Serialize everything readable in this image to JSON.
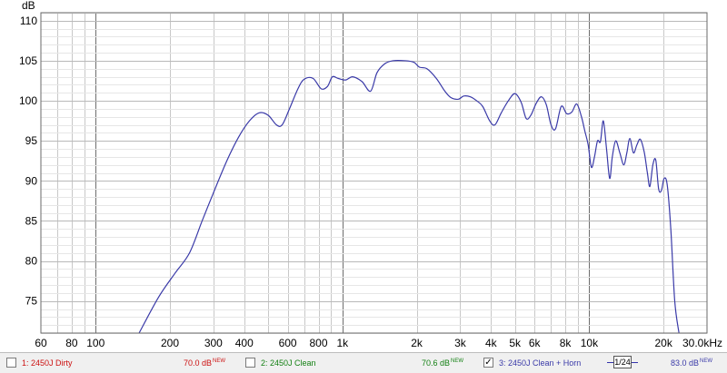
{
  "chart_data": {
    "type": "line",
    "ylabel": "dB",
    "y_ticks": [
      75,
      80,
      85,
      90,
      95,
      100,
      105,
      110
    ],
    "ylim": [
      71,
      111
    ],
    "xlim": [
      60,
      30000
    ],
    "x_scale": "log",
    "x_ticks": [
      {
        "v": 60,
        "label": "60"
      },
      {
        "v": 80,
        "label": "80"
      },
      {
        "v": 100,
        "label": "100"
      },
      {
        "v": 200,
        "label": "200"
      },
      {
        "v": 300,
        "label": "300"
      },
      {
        "v": 400,
        "label": "400"
      },
      {
        "v": 600,
        "label": "600"
      },
      {
        "v": 800,
        "label": "800"
      },
      {
        "v": 1000,
        "label": "1k"
      },
      {
        "v": 2000,
        "label": "2k"
      },
      {
        "v": 3000,
        "label": "3k"
      },
      {
        "v": 4000,
        "label": "4k"
      },
      {
        "v": 5000,
        "label": "5k"
      },
      {
        "v": 6000,
        "label": "6k"
      },
      {
        "v": 8000,
        "label": "8k"
      },
      {
        "v": 10000,
        "label": "10k"
      },
      {
        "v": 20000,
        "label": "20k"
      },
      {
        "v": 30000,
        "label": "30.0kHz"
      }
    ],
    "grid": true,
    "series": [
      {
        "name": "3: 2450J Clean + Horn",
        "color": "#3a3aa8",
        "points": [
          [
            150,
            71.0
          ],
          [
            180,
            75.5
          ],
          [
            210,
            78.5
          ],
          [
            240,
            81.0
          ],
          [
            270,
            85.0
          ],
          [
            300,
            88.5
          ],
          [
            340,
            92.5
          ],
          [
            380,
            95.5
          ],
          [
            420,
            97.5
          ],
          [
            460,
            98.5
          ],
          [
            500,
            98.2
          ],
          [
            540,
            97.0
          ],
          [
            570,
            97.0
          ],
          [
            610,
            99.0
          ],
          [
            660,
            101.5
          ],
          [
            700,
            102.7
          ],
          [
            760,
            102.8
          ],
          [
            820,
            101.5
          ],
          [
            870,
            101.8
          ],
          [
            910,
            103.0
          ],
          [
            960,
            102.8
          ],
          [
            1030,
            102.6
          ],
          [
            1100,
            103.0
          ],
          [
            1200,
            102.4
          ],
          [
            1300,
            101.2
          ],
          [
            1380,
            103.5
          ],
          [
            1480,
            104.6
          ],
          [
            1600,
            105.0
          ],
          [
            1800,
            105.0
          ],
          [
            1950,
            104.8
          ],
          [
            2050,
            104.2
          ],
          [
            2200,
            104.0
          ],
          [
            2400,
            102.8
          ],
          [
            2600,
            101.2
          ],
          [
            2750,
            100.4
          ],
          [
            2950,
            100.2
          ],
          [
            3100,
            100.6
          ],
          [
            3300,
            100.5
          ],
          [
            3500,
            100.0
          ],
          [
            3700,
            99.3
          ],
          [
            3950,
            97.5
          ],
          [
            4150,
            97.0
          ],
          [
            4400,
            98.5
          ],
          [
            4700,
            100.0
          ],
          [
            5000,
            100.9
          ],
          [
            5300,
            99.8
          ],
          [
            5550,
            97.8
          ],
          [
            5800,
            98.2
          ],
          [
            6100,
            99.7
          ],
          [
            6400,
            100.5
          ],
          [
            6700,
            99.5
          ],
          [
            7000,
            97.0
          ],
          [
            7300,
            96.5
          ],
          [
            7700,
            99.3
          ],
          [
            8100,
            98.4
          ],
          [
            8500,
            98.6
          ],
          [
            8900,
            99.6
          ],
          [
            9300,
            98.0
          ],
          [
            9600,
            96.2
          ],
          [
            9900,
            94.5
          ],
          [
            10200,
            91.7
          ],
          [
            10500,
            93.0
          ],
          [
            10800,
            95.0
          ],
          [
            11100,
            94.9
          ],
          [
            11400,
            97.5
          ],
          [
            11750,
            94.0
          ],
          [
            12100,
            90.3
          ],
          [
            12400,
            93.0
          ],
          [
            12800,
            95.0
          ],
          [
            13300,
            93.5
          ],
          [
            13800,
            92.0
          ],
          [
            14200,
            93.5
          ],
          [
            14600,
            95.3
          ],
          [
            15100,
            93.5
          ],
          [
            15600,
            94.5
          ],
          [
            16100,
            95.2
          ],
          [
            16700,
            93.6
          ],
          [
            17200,
            91.0
          ],
          [
            17600,
            89.3
          ],
          [
            18100,
            92.0
          ],
          [
            18600,
            92.6
          ],
          [
            19100,
            89.0
          ],
          [
            19600,
            88.8
          ],
          [
            20100,
            90.3
          ],
          [
            20700,
            89.5
          ],
          [
            21400,
            84.0
          ],
          [
            22200,
            75.0
          ],
          [
            23100,
            71.0
          ]
        ]
      }
    ]
  },
  "legend": {
    "items": [
      {
        "name": "1: 2450J Dirty",
        "level": "70.0 dB",
        "tag": "NEW",
        "checked": false,
        "checkmark": "",
        "color": "#cc1111"
      },
      {
        "name": "2: 2450J Clean",
        "level": "70.6 dB",
        "tag": "NEW",
        "checked": false,
        "checkmark": "",
        "color": "#138013"
      },
      {
        "name": "3: 2450J Clean + Horn",
        "level": "83.0 dB",
        "tag": "NEW",
        "checked": true,
        "checkmark": "✓",
        "color": "#3a3aa8"
      }
    ],
    "smoothing": "1/24"
  }
}
